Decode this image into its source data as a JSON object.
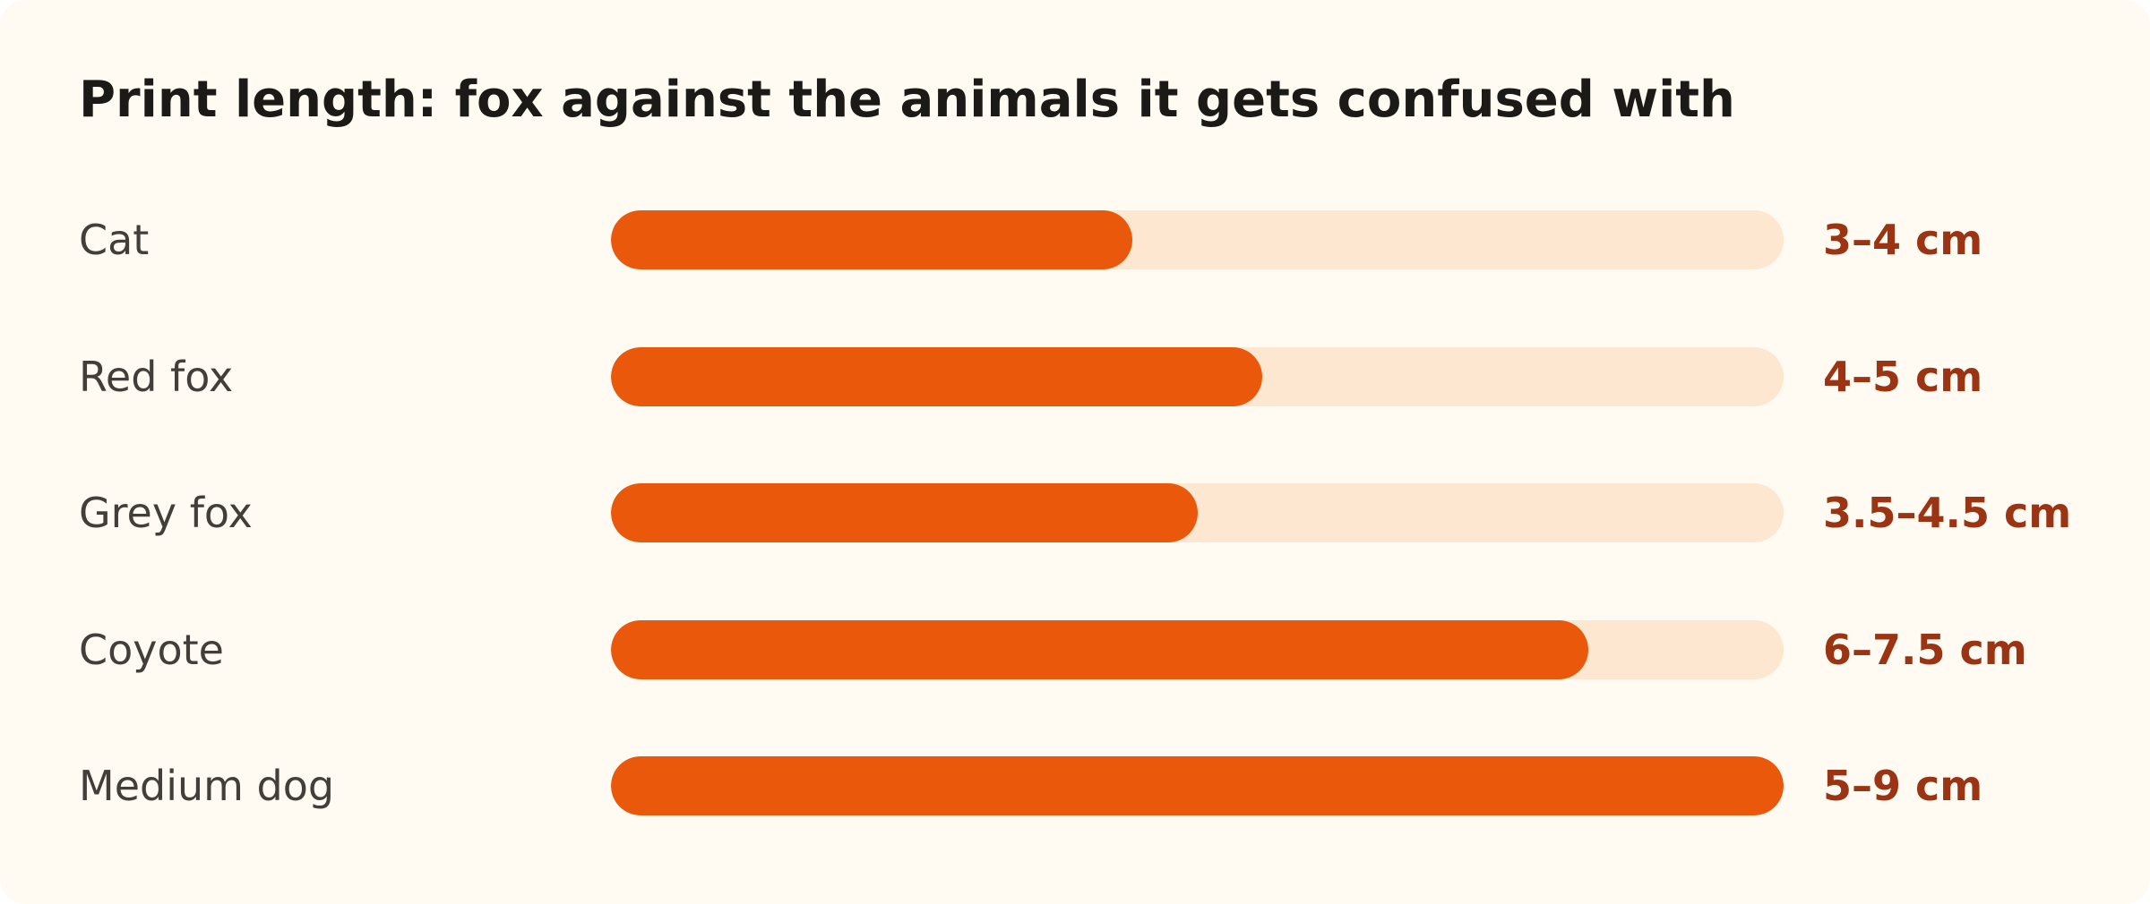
{
  "chart_data": {
    "type": "bar",
    "title": "Print length: fox against the animals it gets confused with",
    "categories": [
      "Cat",
      "Red fox",
      "Grey fox",
      "Coyote",
      "Medium dog"
    ],
    "values": [
      4,
      5,
      4.5,
      7.5,
      9
    ],
    "value_labels": [
      "3–4 cm",
      "4–5 cm",
      "3.5–4.5 cm",
      "6–7.5 cm",
      "5–9 cm"
    ],
    "xlim": [
      0,
      9
    ],
    "grid": false,
    "colors": {
      "bar": "#ea580c",
      "track": "#fde7d1",
      "value_text": "#9a3412",
      "label_text": "#433e39",
      "title_text": "#1c1a17",
      "background": "#fffbf3"
    }
  }
}
